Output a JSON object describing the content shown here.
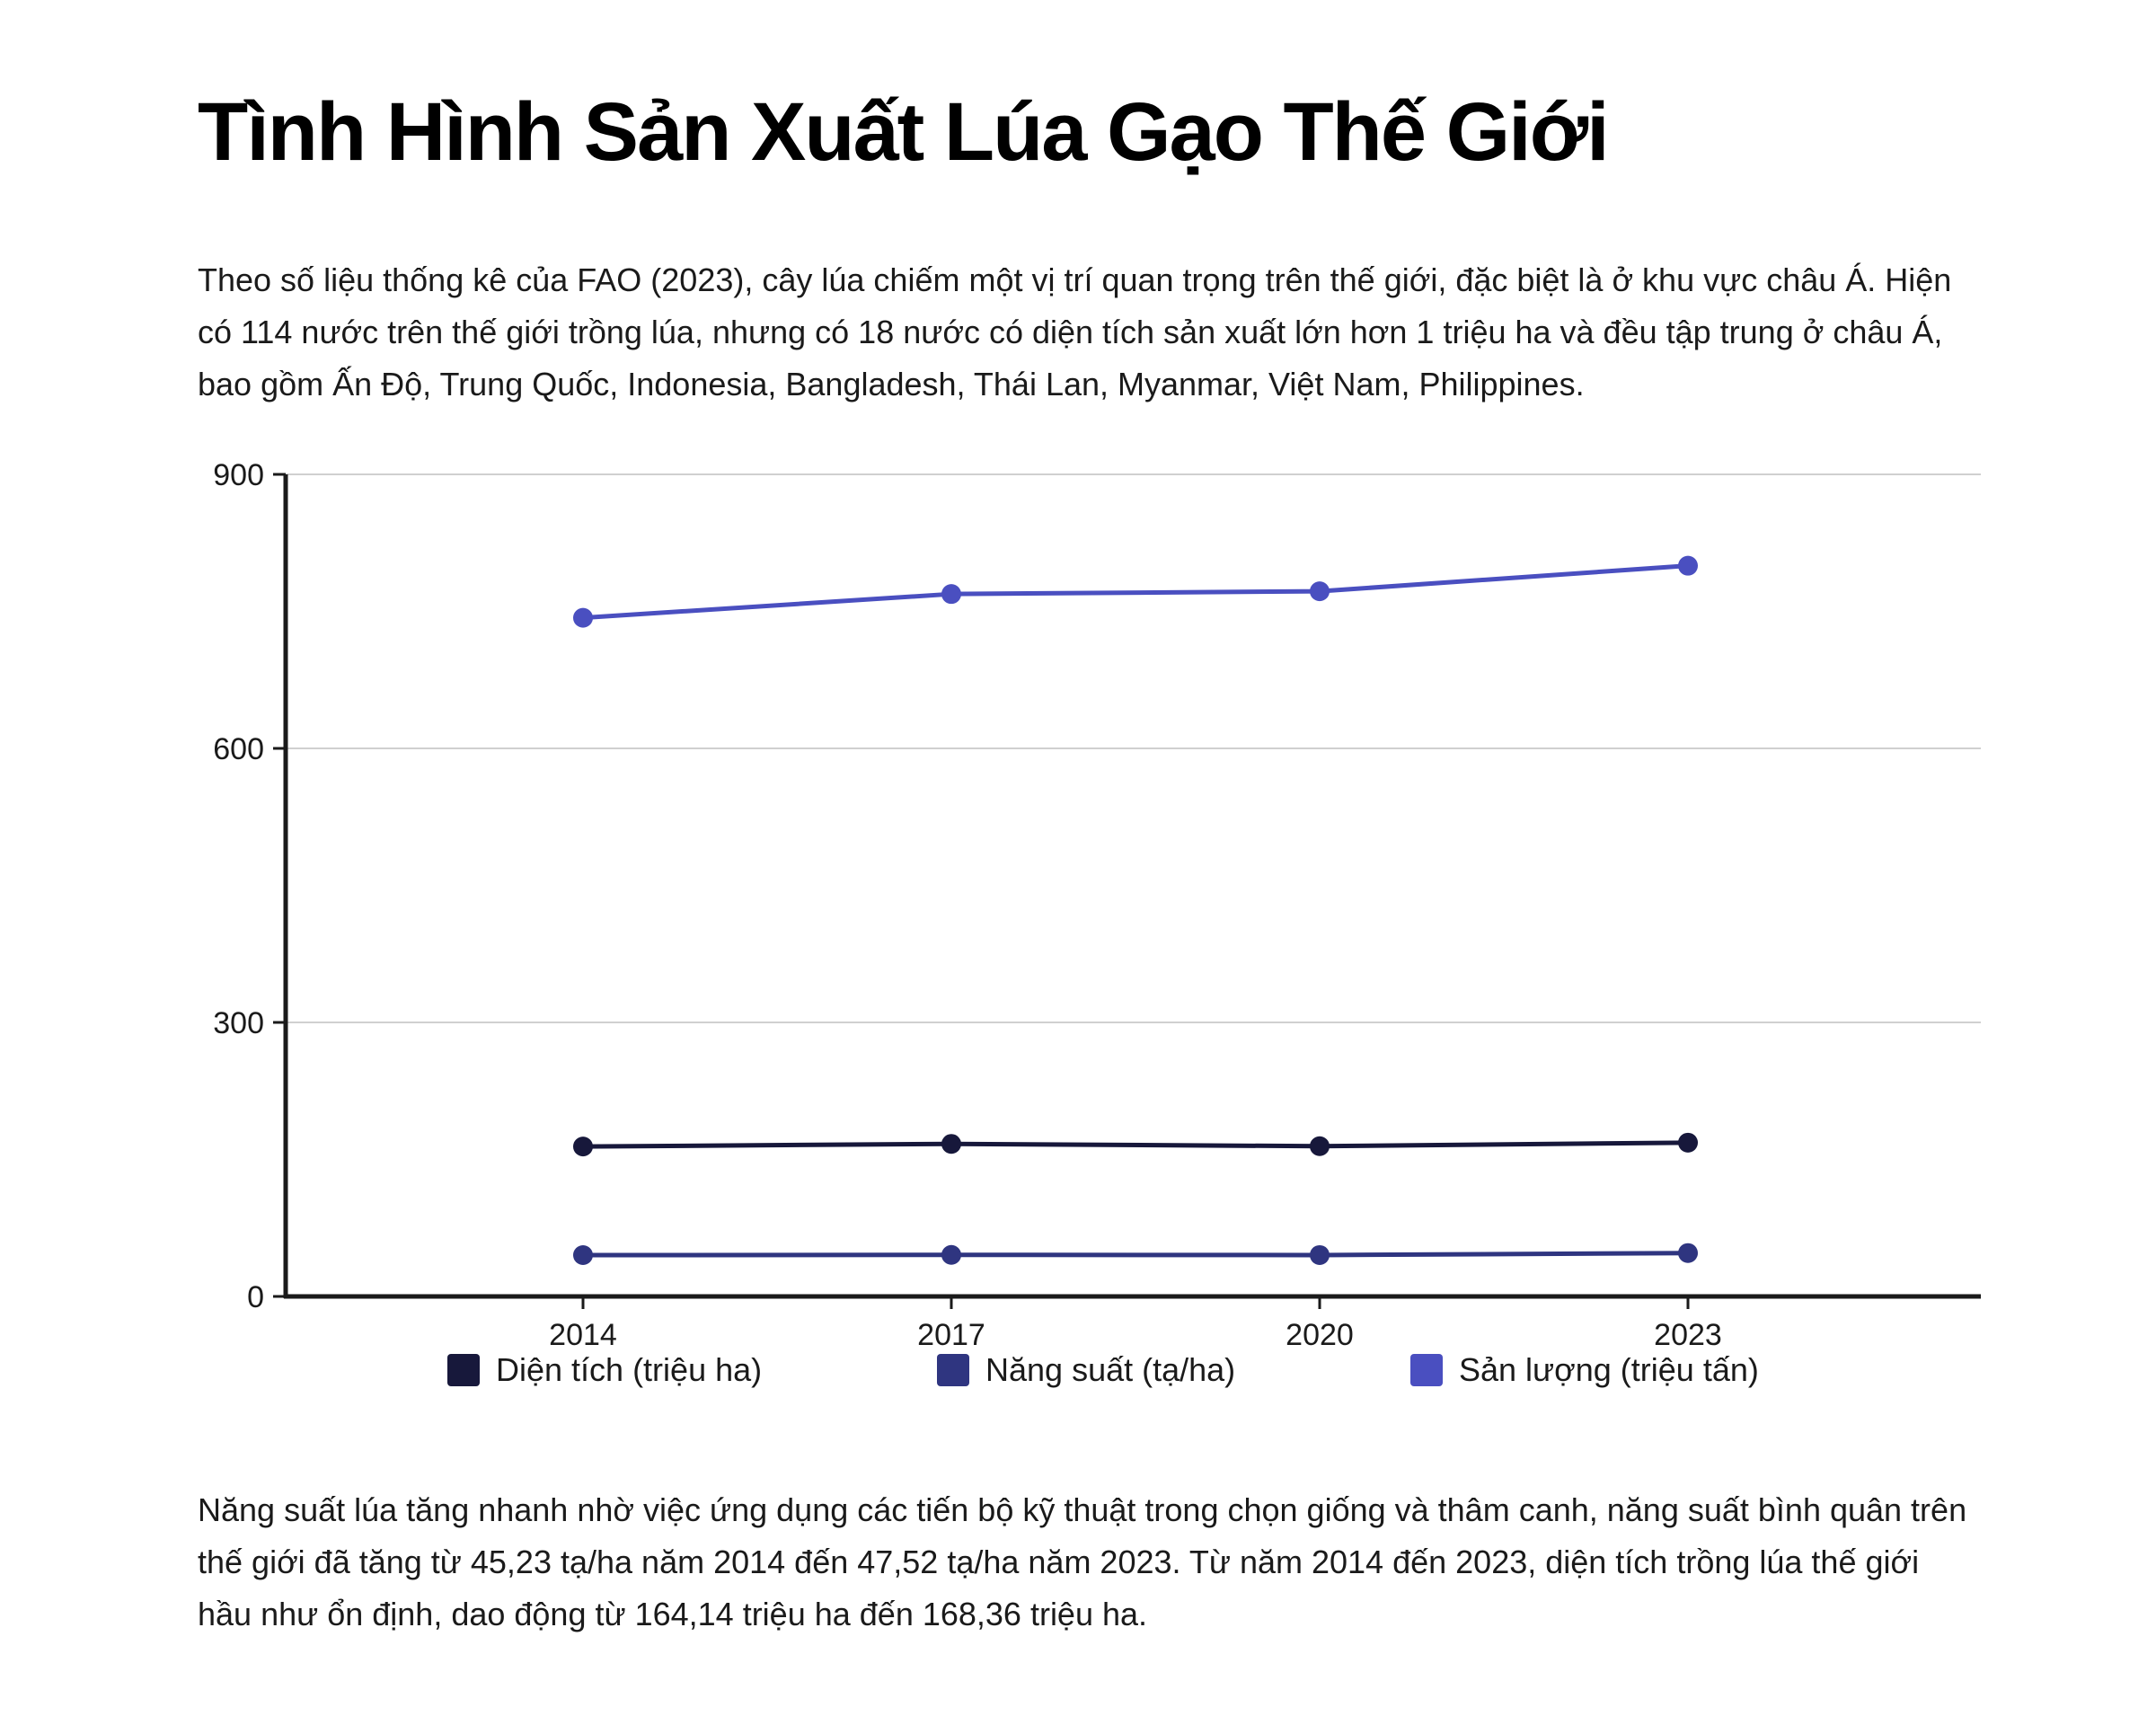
{
  "title": "Tình Hình Sản Xuất Lúa Gạo Thế Giới",
  "intro": "Theo số liệu thống kê của FAO (2023), cây lúa chiếm một vị trí quan trọng trên thế giới, đặc biệt là ở khu vực châu Á. Hiện có 114 nước trên thế giới trồng lúa, nhưng có 18 nước có diện tích sản xuất lớn hơn 1 triệu ha và đều tập trung ở châu Á, bao gồm Ấn Độ, Trung Quốc, Indonesia, Bangladesh, Thái Lan, Myanmar, Việt Nam, Philippines.",
  "outro": "Năng suất lúa tăng nhanh nhờ việc ứng dụng các tiến bộ kỹ thuật trong chọn giống và thâm canh, năng suất bình quân trên thế giới đã tăng từ 45,23 tạ/ha năm 2014 đến 47,52 tạ/ha năm 2023. Từ năm 2014 đến 2023, diện tích trồng lúa thế giới hầu như ổn định, dao động từ 164,14 triệu ha đến 168,36 triệu ha.",
  "chart_data": {
    "type": "line",
    "x": [
      "2014",
      "2017",
      "2020",
      "2023"
    ],
    "ylim": [
      0,
      900
    ],
    "yticks": [
      0,
      300,
      600,
      900
    ],
    "grid": true,
    "legend_position": "bottom",
    "series": [
      {
        "name": "Diện tích (triệu ha)",
        "color": "#17183b",
        "values": [
          164.14,
          167,
          164.5,
          168.36
        ]
      },
      {
        "name": "Năng suất (tạ/ha)",
        "color": "#2f3580",
        "values": [
          45.23,
          45.5,
          45.3,
          47.52
        ]
      },
      {
        "name": "Sản lượng (triệu tấn)",
        "color": "#4a4fc0",
        "values": [
          743,
          769,
          772,
          800
        ]
      }
    ]
  }
}
